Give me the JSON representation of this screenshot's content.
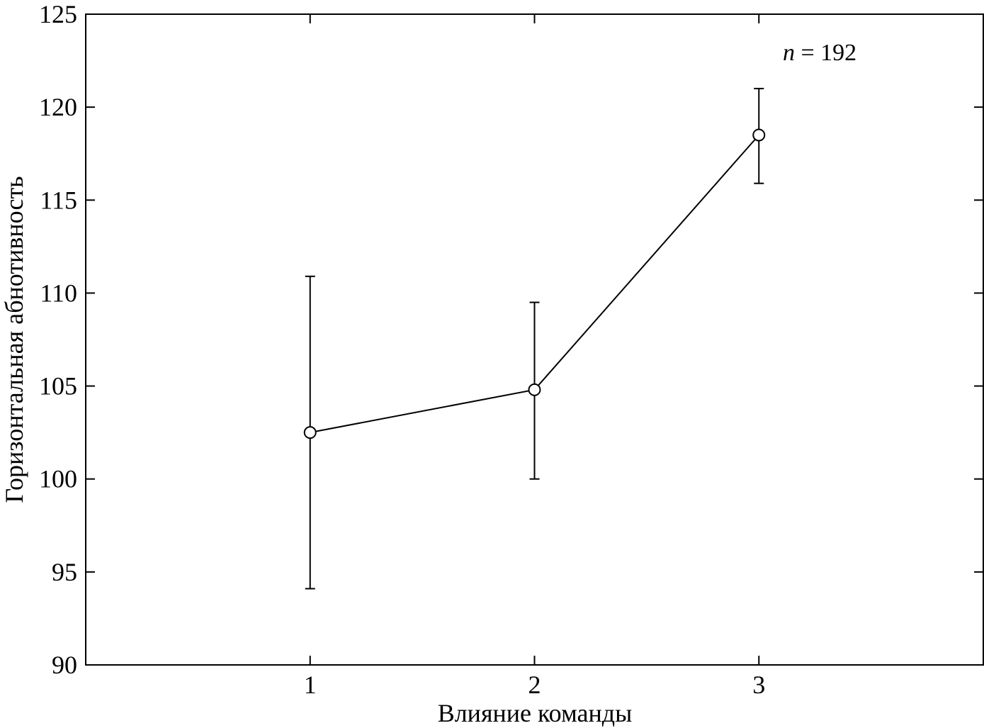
{
  "chart_data": {
    "type": "line",
    "xlabel": "Влияние команды",
    "ylabel": "Горизонтальная абнотивность",
    "xlim": [
      0,
      4
    ],
    "ylim": [
      90,
      125
    ],
    "x_ticks": [
      1,
      2,
      3
    ],
    "y_ticks": [
      90,
      95,
      100,
      105,
      110,
      115,
      120,
      125
    ],
    "grid": false,
    "series": [
      {
        "x": [
          1,
          2,
          3
        ],
        "y": [
          102.5,
          104.8,
          118.5
        ],
        "y_err_low": [
          94.1,
          100.0,
          115.9
        ],
        "y_err_high": [
          110.9,
          109.5,
          121.0
        ],
        "marker": "open-circle",
        "color": "#000000"
      }
    ],
    "annotation": {
      "var": "n",
      "rest": " = 192"
    }
  }
}
